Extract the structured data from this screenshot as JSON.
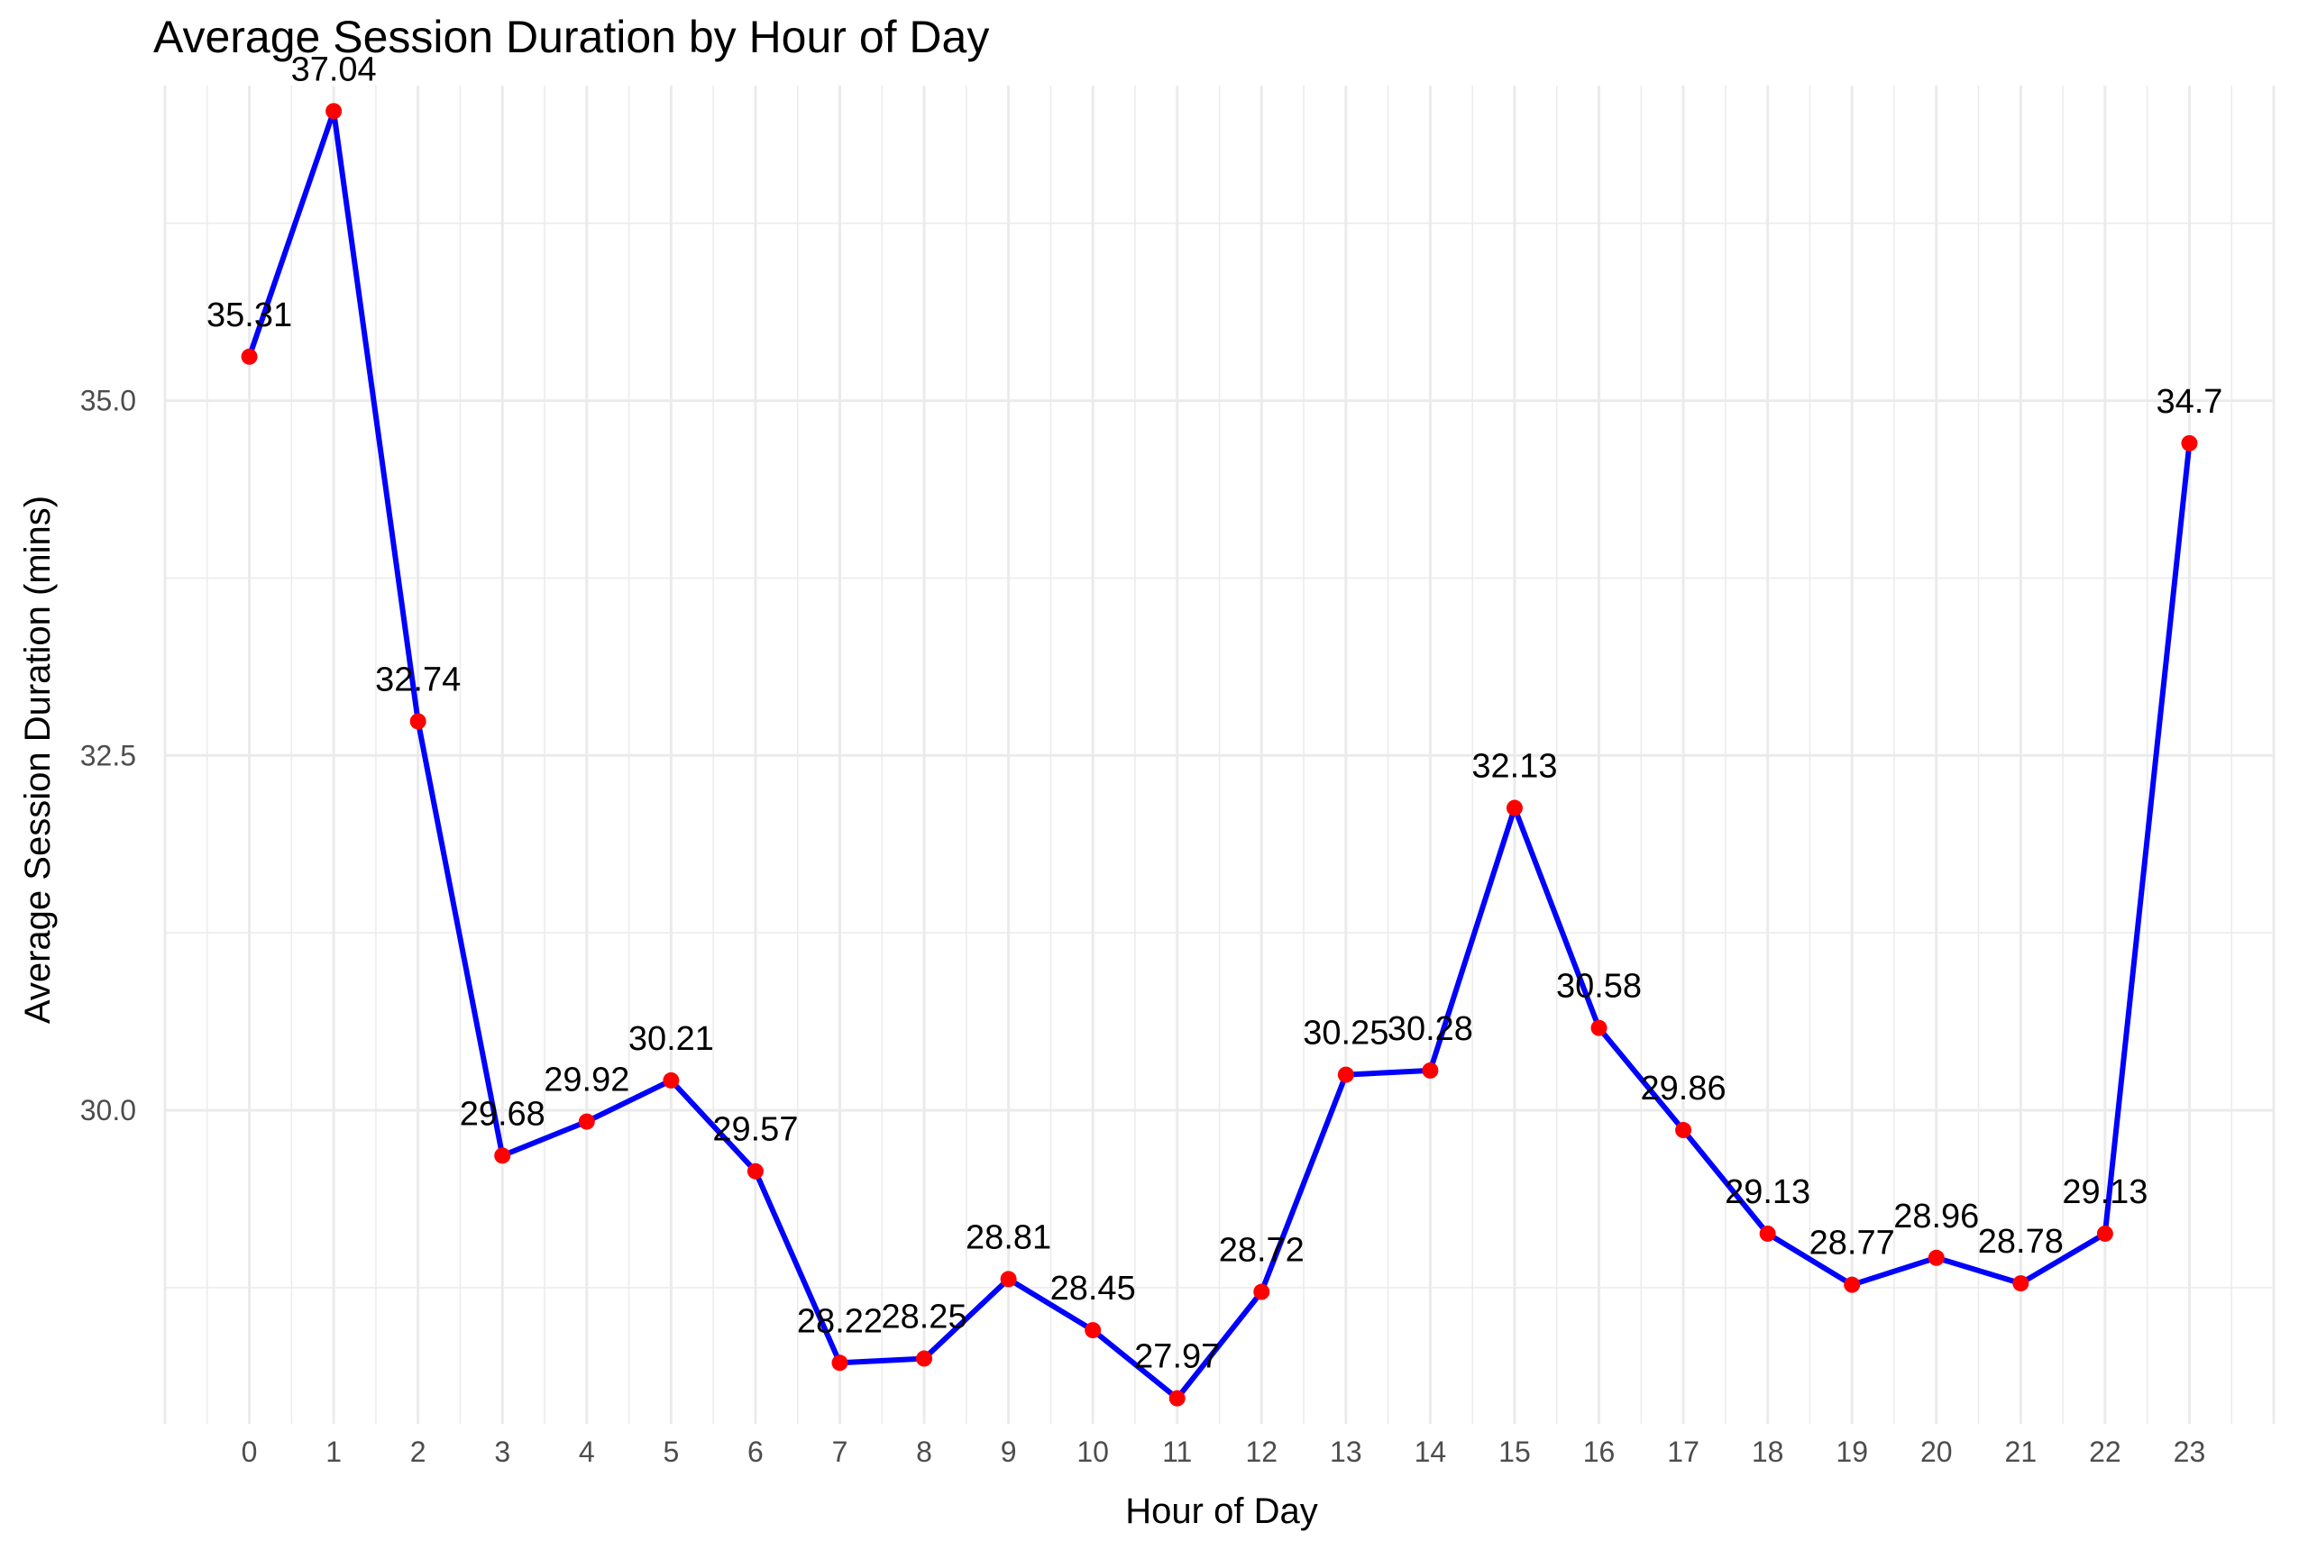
{
  "chart_data": {
    "type": "line",
    "title": "Average Session Duration by Hour of Day",
    "xlabel": "Hour of Day",
    "ylabel": "Average Session Duration (mins)",
    "x": [
      0,
      1,
      2,
      3,
      4,
      5,
      6,
      7,
      8,
      9,
      10,
      11,
      12,
      13,
      14,
      15,
      16,
      17,
      18,
      19,
      20,
      21,
      22,
      23
    ],
    "series": [
      {
        "values": [
          35.31,
          37.04,
          32.74,
          29.68,
          29.92,
          30.21,
          29.57,
          28.22,
          28.25,
          28.81,
          28.45,
          27.97,
          28.72,
          30.25,
          30.28,
          32.13,
          30.58,
          29.86,
          29.13,
          28.77,
          28.96,
          28.78,
          29.13,
          34.7
        ],
        "labels": [
          "35.31",
          "37.04",
          "32.74",
          "29.68",
          "29.92",
          "30.21",
          "29.57",
          "28.22",
          "28.25",
          "28.81",
          "28.45",
          "27.97",
          "28.72",
          "30.25",
          "30.28",
          "32.13",
          "30.58",
          "29.86",
          "29.13",
          "28.77",
          "28.96",
          "28.78",
          "29.13",
          "34.7"
        ],
        "line_color": "#0000ff",
        "point_color": "#ff0000"
      }
    ],
    "x_ticks": [
      "0",
      "1",
      "2",
      "3",
      "4",
      "5",
      "6",
      "7",
      "8",
      "9",
      "10",
      "11",
      "12",
      "13",
      "14",
      "15",
      "16",
      "17",
      "18",
      "19",
      "20",
      "21",
      "22",
      "23"
    ],
    "y_ticks": [
      {
        "value": 30.0,
        "label": "30.0"
      },
      {
        "value": 32.5,
        "label": "32.5"
      },
      {
        "value": 35.0,
        "label": "35.0"
      }
    ],
    "xlim": [
      -1,
      24
    ],
    "ylim": [
      27.79,
      37.22
    ],
    "grid": true,
    "grid_color": "#ebebeb",
    "legend": "none"
  }
}
